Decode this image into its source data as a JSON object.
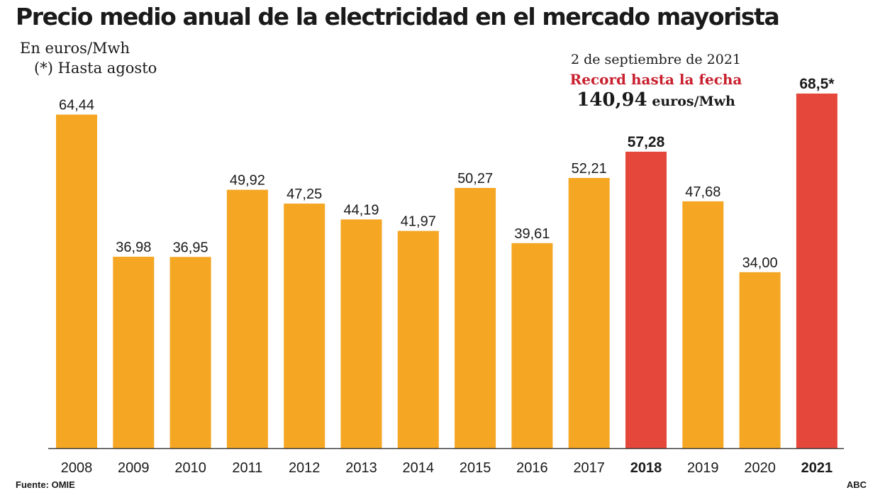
{
  "title": "Precio medio anual de la electricidad en el mercado mayorista",
  "unit_label": "En euros/Mwh",
  "note": "(*) Hasta agosto",
  "annotation": {
    "date": "2 de septiembre de 2021",
    "record_label": "Record hasta la fecha",
    "record_value": "140,94",
    "record_unit": "euros/Mwh"
  },
  "source_label": "Fuente:",
  "source_value": "OMIE",
  "credit": "ABC",
  "colors": {
    "normal": "#f5a623",
    "highlight": "#e5483a",
    "axis": "#333333"
  },
  "chart_data": {
    "type": "bar",
    "title": "Precio medio anual de la electricidad en el mercado mayorista",
    "ylabel": "En euros/Mwh",
    "xlabel": "",
    "ylim": [
      0,
      75
    ],
    "categories": [
      "2008",
      "2009",
      "2010",
      "2011",
      "2012",
      "2013",
      "2014",
      "2015",
      "2016",
      "2017",
      "2018",
      "2019",
      "2020",
      "2021"
    ],
    "values": [
      64.44,
      36.98,
      36.95,
      49.92,
      47.25,
      44.19,
      41.97,
      50.27,
      39.61,
      52.21,
      57.28,
      47.68,
      34.0,
      68.5
    ],
    "labels": [
      "64,44",
      "36,98",
      "36,95",
      "49,92",
      "47,25",
      "44,19",
      "41,97",
      "50,27",
      "39,61",
      "52,21",
      "57,28",
      "47,68",
      "34,00",
      "68,5*"
    ],
    "highlight": [
      false,
      false,
      false,
      false,
      false,
      false,
      false,
      false,
      false,
      false,
      true,
      false,
      false,
      true
    ]
  }
}
